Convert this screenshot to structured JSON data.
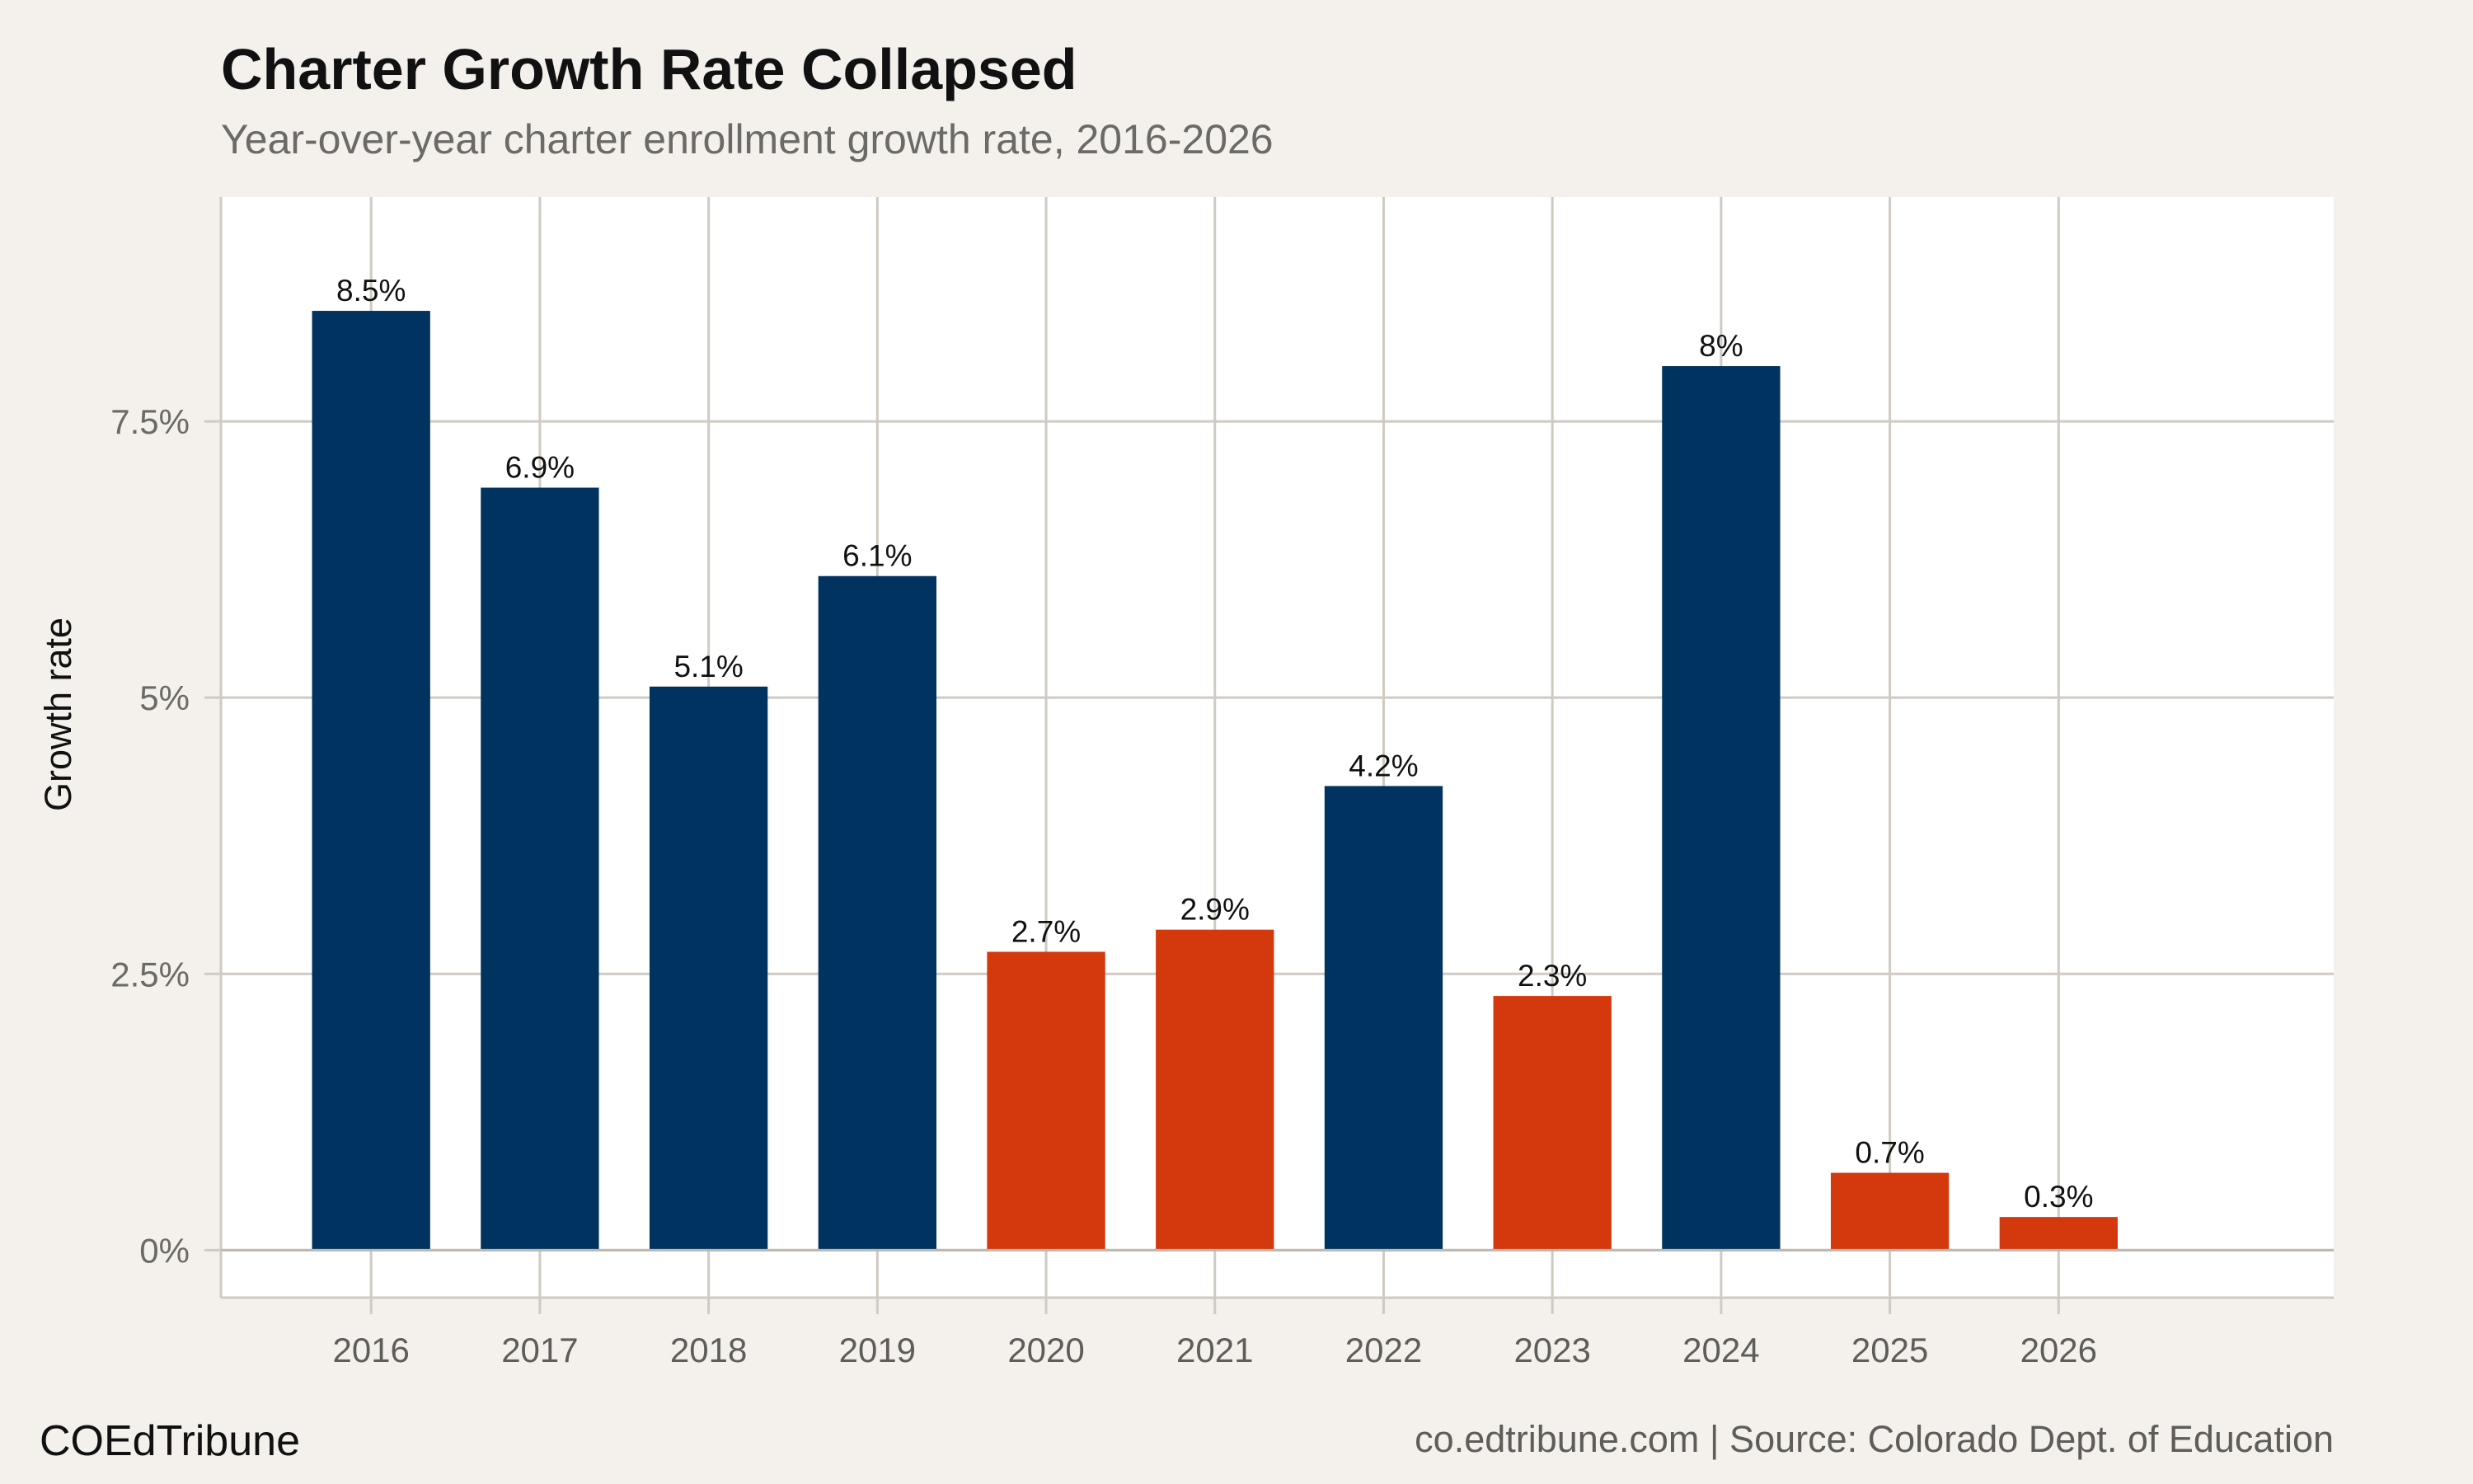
{
  "chart_data": {
    "type": "bar",
    "title": "Charter Growth Rate Collapsed",
    "subtitle": "Year-over-year charter enrollment growth rate, 2016-2026",
    "xlabel": "",
    "ylabel": "Growth rate",
    "categories": [
      "2016",
      "2017",
      "2018",
      "2019",
      "2020",
      "2021",
      "2022",
      "2023",
      "2024",
      "2025",
      "2026"
    ],
    "values": [
      8.5,
      6.9,
      5.1,
      6.1,
      2.7,
      2.9,
      4.2,
      2.3,
      8.0,
      0.7,
      0.3
    ],
    "data_labels": [
      "8.5%",
      "6.9%",
      "5.1%",
      "6.1%",
      "2.7%",
      "2.9%",
      "4.2%",
      "2.3%",
      "8%",
      "0.7%",
      "0.3%"
    ],
    "bar_colors": [
      "#00335f",
      "#00335f",
      "#00335f",
      "#00335f",
      "#d4380d",
      "#d4380d",
      "#00335f",
      "#d4380d",
      "#00335f",
      "#d4380d",
      "#d4380d"
    ],
    "yticks": [
      0,
      2.5,
      5,
      7.5
    ],
    "ytick_labels": [
      "0%",
      "2.5%",
      "5%",
      "7.5%"
    ],
    "ylim": [
      -0.43,
      9.53
    ],
    "xlim": [
      2015.11,
      2027.63
    ],
    "grid": true,
    "colors": {
      "background": "#f4f1ec",
      "panel": "#ffffff",
      "grid": "#cfcac2",
      "primary": "#00335f",
      "highlight": "#d4380d"
    }
  },
  "footer": {
    "brand": "COEdTribune",
    "source": "co.edtribune.com | Source: Colorado Dept. of Education"
  }
}
